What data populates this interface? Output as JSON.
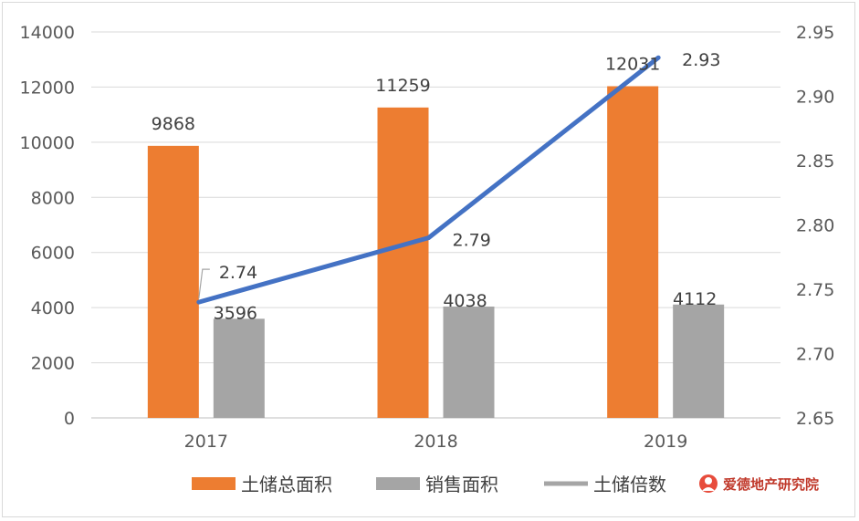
{
  "chart_data": {
    "type": "bar",
    "categories": [
      "2017",
      "2018",
      "2019"
    ],
    "series": [
      {
        "name": "土储总面积",
        "kind": "bar",
        "axis": "left",
        "color": "#ed7d31",
        "values": [
          9868,
          11259,
          12031
        ]
      },
      {
        "name": "销售面积",
        "kind": "bar",
        "axis": "left",
        "color": "#a5a5a5",
        "values": [
          3596,
          4038,
          4112
        ]
      },
      {
        "name": "土储倍数",
        "kind": "line",
        "axis": "right",
        "color": "#4472c4",
        "values": [
          2.74,
          2.79,
          2.93
        ]
      }
    ],
    "y_left": {
      "min": 0,
      "max": 14000,
      "ticks": [
        "0",
        "2000",
        "4000",
        "6000",
        "8000",
        "10000",
        "12000",
        "14000"
      ]
    },
    "y_right": {
      "min": 2.65,
      "max": 2.95,
      "ticks": [
        "2.65",
        "2.70",
        "2.75",
        "2.80",
        "2.85",
        "2.90",
        "2.95"
      ]
    },
    "data_labels": {
      "bar0": [
        "9868",
        "11259",
        "12031"
      ],
      "bar1": [
        "3596",
        "4038",
        "4112"
      ],
      "line": [
        "2.74",
        "2.79",
        "2.93"
      ]
    },
    "legend_position": "bottom",
    "grid": true,
    "grid_color": "#d9d9d9"
  },
  "watermark": {
    "text": "爱德地产研究院",
    "icon": "brand-logo-icon",
    "color": "#c0392b"
  }
}
